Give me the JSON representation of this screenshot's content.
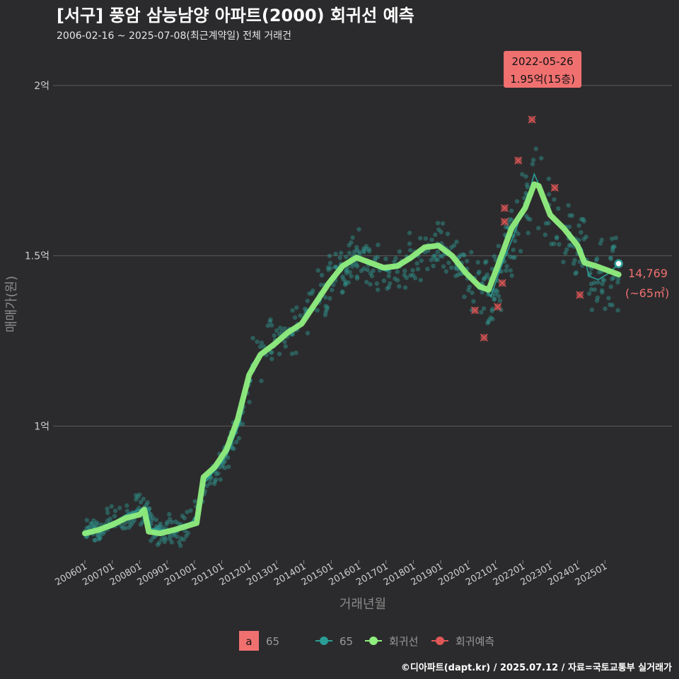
{
  "header": {
    "title": "[서구] 풍암 삼능남양 아파트(2000) 회귀선 예측",
    "subtitle": "2006-02-16 ~ 2025-07-08(최근계약일) 전체 거래건"
  },
  "footer": {
    "credit": "©디아파트(dapt.kr) / 2025.07.12 / 자료=국토교통부 실거래가"
  },
  "colors": {
    "background": "#2b2b2d",
    "grid": "#5a5a5a",
    "points": "#2f8f8a",
    "trade_line": "#2a9d96",
    "regression": "#90ee7e",
    "prediction": "#e05757",
    "label_bg": "#f07070"
  },
  "chart_data": {
    "type": "scatter",
    "xlabel": "거래년월",
    "ylabel": "매매가(원)",
    "x_ticks": [
      "200601",
      "200701",
      "200801",
      "200901",
      "201001",
      "201101",
      "201201",
      "201301",
      "201401",
      "201501",
      "201601",
      "201701",
      "201801",
      "201901",
      "202001",
      "202101",
      "202201",
      "202301",
      "202401",
      "202501"
    ],
    "y_ticks": [
      {
        "value": 20000,
        "label": "2억"
      },
      {
        "value": 15000,
        "label": "1.5억"
      },
      {
        "value": 10000,
        "label": "1억"
      }
    ],
    "xlim": [
      "2006-01",
      "2025-12"
    ],
    "ylim": [
      6000,
      20500
    ],
    "grid": "horizontal",
    "legend": {
      "position": "bottom",
      "key_letter": "a",
      "key_label": "65",
      "items": [
        {
          "name": "65",
          "kind": "trade"
        },
        {
          "name": "회귀선",
          "kind": "regression"
        },
        {
          "name": "회귀예측",
          "kind": "prediction"
        }
      ]
    },
    "peak_label": {
      "date": "2022-05-26",
      "text": "1.95억(15층)",
      "x": "2022-05",
      "y": 19500
    },
    "last_label": {
      "value": "14,769",
      "area": "(~65㎡)",
      "x": "2025-07",
      "y": 14769
    },
    "series": [
      {
        "name": "회귀선",
        "points": [
          [
            "2006-01",
            6850
          ],
          [
            "2006-07",
            6950
          ],
          [
            "2007-01",
            7100
          ],
          [
            "2007-07",
            7300
          ],
          [
            "2008-01",
            7400
          ],
          [
            "2008-03",
            7550
          ],
          [
            "2008-05",
            6900
          ],
          [
            "2008-10",
            6850
          ],
          [
            "2009-04",
            6950
          ],
          [
            "2009-09",
            7050
          ],
          [
            "2010-02",
            7150
          ],
          [
            "2010-05",
            8500
          ],
          [
            "2010-10",
            8800
          ],
          [
            "2011-03",
            9300
          ],
          [
            "2011-08",
            10200
          ],
          [
            "2012-01",
            11500
          ],
          [
            "2012-06",
            12100
          ],
          [
            "2012-12",
            12400
          ],
          [
            "2013-06",
            12750
          ],
          [
            "2013-12",
            13000
          ],
          [
            "2014-06",
            13600
          ],
          [
            "2014-12",
            14200
          ],
          [
            "2015-06",
            14700
          ],
          [
            "2015-12",
            14950
          ],
          [
            "2016-06",
            14800
          ],
          [
            "2016-12",
            14650
          ],
          [
            "2017-06",
            14700
          ],
          [
            "2017-12",
            14950
          ],
          [
            "2018-06",
            15250
          ],
          [
            "2018-12",
            15300
          ],
          [
            "2019-06",
            15000
          ],
          [
            "2019-12",
            14500
          ],
          [
            "2020-06",
            14100
          ],
          [
            "2020-10",
            14000
          ],
          [
            "2021-02",
            14700
          ],
          [
            "2021-08",
            15800
          ],
          [
            "2022-02",
            16400
          ],
          [
            "2022-06",
            17100
          ],
          [
            "2022-08",
            17050
          ],
          [
            "2023-01",
            16200
          ],
          [
            "2023-07",
            15800
          ],
          [
            "2024-01",
            15300
          ],
          [
            "2024-04",
            14800
          ],
          [
            "2024-09",
            14700
          ],
          [
            "2025-03",
            14550
          ],
          [
            "2025-07",
            14450
          ]
        ]
      },
      {
        "name": "65",
        "points": [
          [
            "2006-01",
            6900
          ],
          [
            "2006-07",
            6950
          ],
          [
            "2007-01",
            7150
          ],
          [
            "2007-07",
            7400
          ],
          [
            "2008-01",
            7550
          ],
          [
            "2008-04",
            7600
          ],
          [
            "2008-06",
            7000
          ],
          [
            "2008-12",
            6950
          ],
          [
            "2009-06",
            7000
          ],
          [
            "2009-12",
            7200
          ],
          [
            "2010-03",
            7500
          ],
          [
            "2010-05",
            8300
          ],
          [
            "2010-10",
            8700
          ],
          [
            "2011-03",
            9100
          ],
          [
            "2011-09",
            10100
          ],
          [
            "2012-02",
            11800
          ],
          [
            "2012-07",
            12200
          ],
          [
            "2013-01",
            12500
          ],
          [
            "2013-07",
            12800
          ],
          [
            "2014-01",
            13100
          ],
          [
            "2014-07",
            13700
          ],
          [
            "2015-01",
            14300
          ],
          [
            "2015-07",
            14750
          ],
          [
            "2016-01",
            15000
          ],
          [
            "2016-07",
            14700
          ],
          [
            "2017-01",
            14550
          ],
          [
            "2017-07",
            14700
          ],
          [
            "2018-01",
            14950
          ],
          [
            "2018-07",
            15300
          ],
          [
            "2019-01",
            15250
          ],
          [
            "2019-07",
            14900
          ],
          [
            "2020-01",
            14400
          ],
          [
            "2020-07",
            14100
          ],
          [
            "2020-11",
            13800
          ],
          [
            "2021-03",
            14600
          ],
          [
            "2021-09",
            15600
          ],
          [
            "2022-03",
            16700
          ],
          [
            "2022-06",
            17400
          ],
          [
            "2022-10",
            16800
          ],
          [
            "2023-03",
            16000
          ],
          [
            "2023-09",
            15700
          ],
          [
            "2024-03",
            15200
          ],
          [
            "2024-06",
            14400
          ],
          [
            "2024-10",
            14300
          ],
          [
            "2025-03",
            14500
          ],
          [
            "2025-07",
            14769
          ]
        ]
      },
      {
        "name": "회귀예측",
        "points": [
          [
            "2020-04",
            13400
          ],
          [
            "2020-08",
            12600
          ],
          [
            "2021-02",
            13500
          ],
          [
            "2021-04",
            14200
          ],
          [
            "2021-05",
            16000
          ],
          [
            "2021-05",
            16400
          ],
          [
            "2021-11",
            17800
          ],
          [
            "2022-05",
            19000
          ],
          [
            "2023-03",
            17000
          ],
          [
            "2024-02",
            13850
          ]
        ]
      }
    ]
  }
}
